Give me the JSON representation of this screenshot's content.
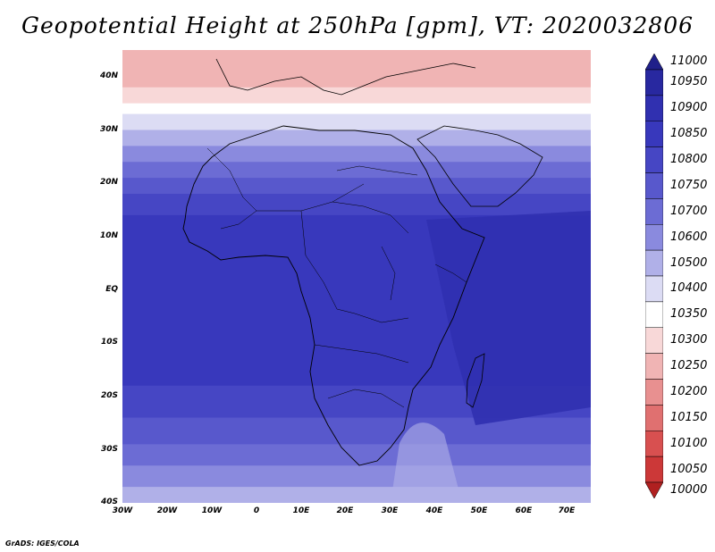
{
  "title": "Geopotential Height at 250hPa [gpm], VT: 2020032806",
  "credit": "GrADS: IGES/COLA",
  "lat_labels": [
    "40N",
    "30N",
    "20N",
    "10N",
    "EQ",
    "10S",
    "20S",
    "30S",
    "40S"
  ],
  "lon_labels": [
    "30W",
    "20W",
    "10W",
    "0",
    "10E",
    "20E",
    "30E",
    "40E",
    "50E",
    "60E",
    "70E"
  ],
  "colorbar": {
    "levels": [
      "11000",
      "10950",
      "10900",
      "10850",
      "10800",
      "10750",
      "10700",
      "10600",
      "10500",
      "10400",
      "10350",
      "10300",
      "10250",
      "10200",
      "10150",
      "10100",
      "10050",
      "10000"
    ],
    "colors": [
      "#20208a",
      "#2828a0",
      "#3030b0",
      "#3838bc",
      "#4646c4",
      "#5858cc",
      "#6c6cd4",
      "#8a8ade",
      "#b0b0e8",
      "#dcdcf4",
      "#ffffff",
      "#f8d8d8",
      "#f0b4b4",
      "#e89090",
      "#e07070",
      "#d85050",
      "#cc3838",
      "#b02020"
    ]
  },
  "map": {
    "extent": {
      "lon_min": -30,
      "lon_max": 75,
      "lat_min": -40,
      "lat_max": 45
    },
    "bands": [
      {
        "lat_top": 45,
        "lat_bot": 38,
        "color": "#f0b4b4"
      },
      {
        "lat_top": 38,
        "lat_bot": 35,
        "color": "#f8d8d8"
      },
      {
        "lat_top": 35,
        "lat_bot": 33,
        "color": "#ffffff"
      },
      {
        "lat_top": 33,
        "lat_bot": 30,
        "color": "#dcdcf4"
      },
      {
        "lat_top": 30,
        "lat_bot": 27,
        "color": "#b0b0e8"
      },
      {
        "lat_top": 27,
        "lat_bot": 24,
        "color": "#8a8ade"
      },
      {
        "lat_top": 24,
        "lat_bot": 21,
        "color": "#6c6cd4"
      },
      {
        "lat_top": 21,
        "lat_bot": 18,
        "color": "#5858cc"
      },
      {
        "lat_top": 18,
        "lat_bot": 14,
        "color": "#4646c4"
      },
      {
        "lat_top": 14,
        "lat_bot": -18,
        "color": "#3838bc"
      },
      {
        "lat_top": -18,
        "lat_bot": -24,
        "color": "#4646c4"
      },
      {
        "lat_top": -24,
        "lat_bot": -29,
        "color": "#5858cc"
      },
      {
        "lat_top": -29,
        "lat_bot": -33,
        "color": "#6c6cd4"
      },
      {
        "lat_top": -33,
        "lat_bot": -37,
        "color": "#8a8ade"
      },
      {
        "lat_top": -37,
        "lat_bot": -40,
        "color": "#b0b0e8"
      }
    ]
  }
}
